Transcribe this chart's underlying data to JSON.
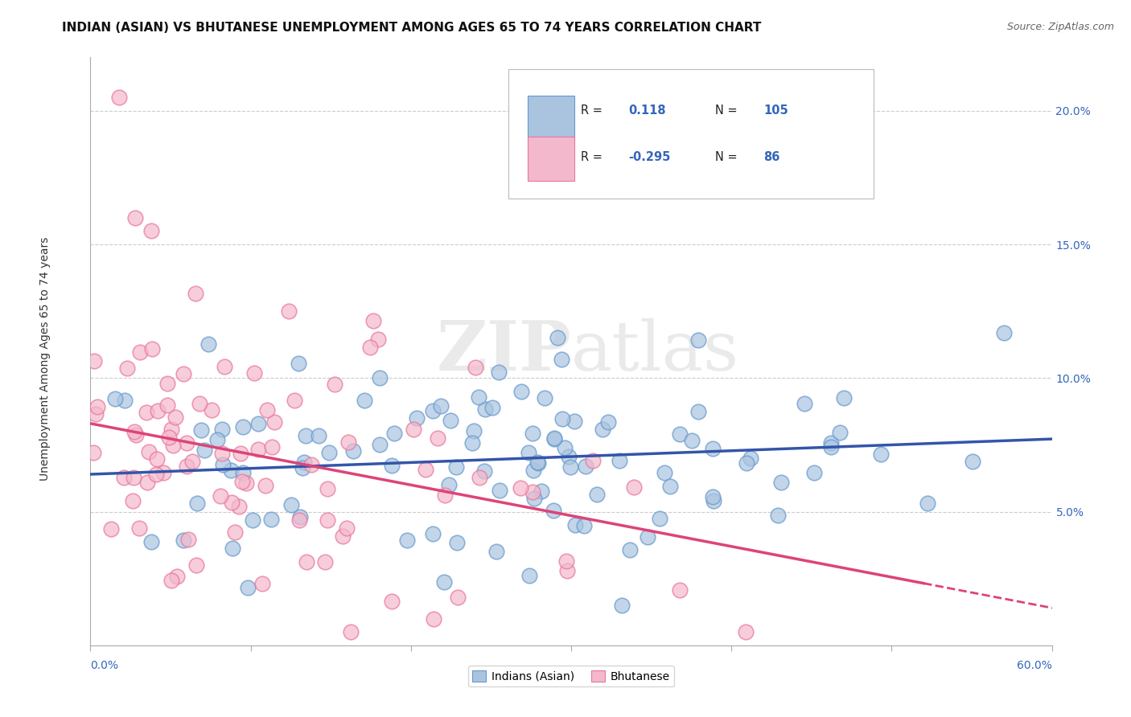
{
  "title": "INDIAN (ASIAN) VS BHUTANESE UNEMPLOYMENT AMONG AGES 65 TO 74 YEARS CORRELATION CHART",
  "source": "Source: ZipAtlas.com",
  "ylabel": "Unemployment Among Ages 65 to 74 years",
  "xlim": [
    0.0,
    0.6
  ],
  "ylim": [
    0.0,
    0.22
  ],
  "yticks": [
    0.05,
    0.1,
    0.15,
    0.2
  ],
  "ytick_labels": [
    "5.0%",
    "10.0%",
    "15.0%",
    "20.0%"
  ],
  "blue_color": "#aac4e0",
  "blue_edge_color": "#6699cc",
  "pink_color": "#f4b8cc",
  "pink_edge_color": "#e87799",
  "blue_line_color": "#3355aa",
  "pink_line_color": "#dd4477",
  "background_color": "#ffffff",
  "watermark": "ZIPatlas",
  "title_fontsize": 11,
  "axis_label_fontsize": 10,
  "tick_fontsize": 10,
  "blue_R": 0.118,
  "blue_N": 105,
  "pink_R": -0.295,
  "pink_N": 86,
  "blue_intercept": 0.064,
  "blue_slope": 0.022,
  "pink_intercept": 0.083,
  "pink_slope": -0.115
}
